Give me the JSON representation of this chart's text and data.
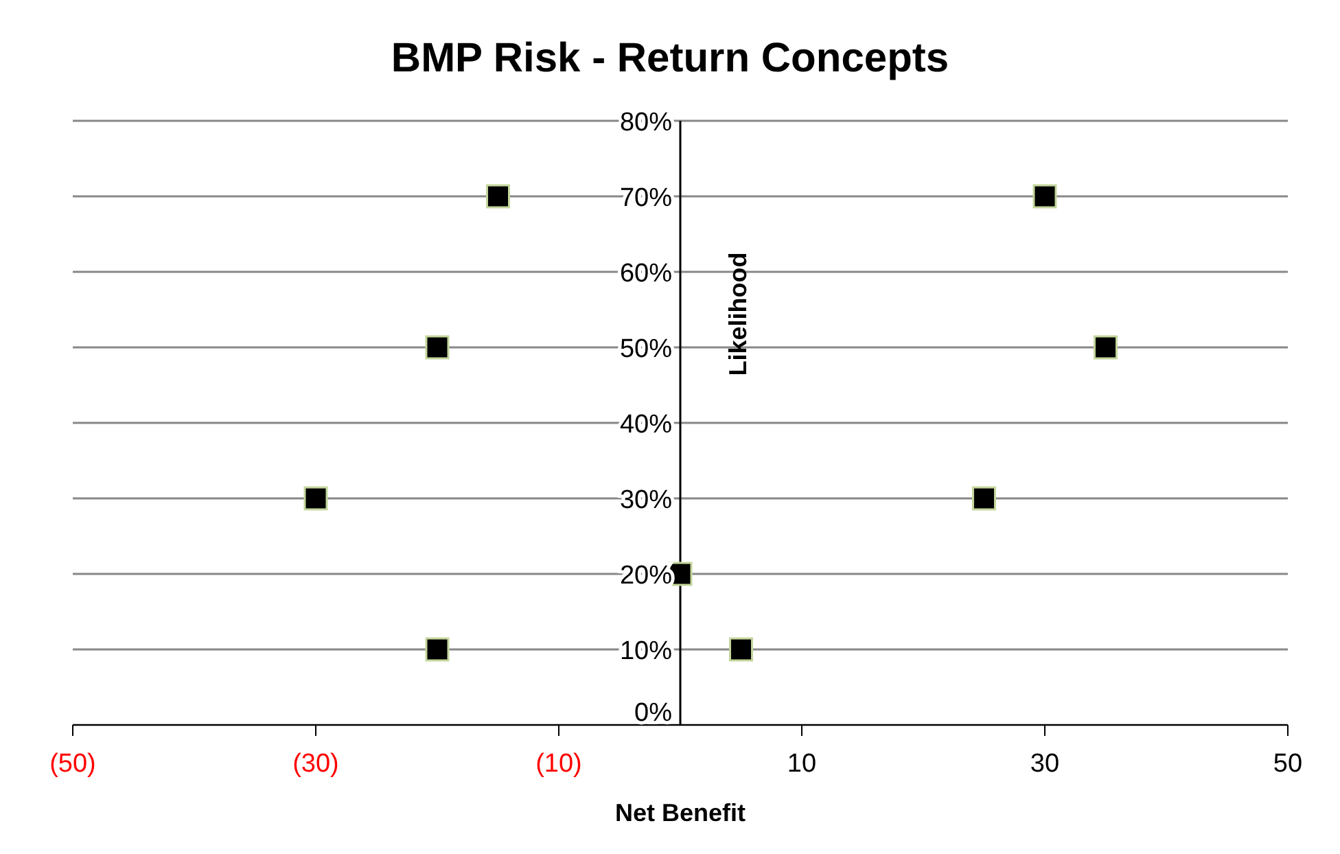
{
  "chart_data": {
    "type": "scatter",
    "title": "BMP Risk - Return Concepts",
    "xlabel": "Net Benefit",
    "ylabel": "Likelihood",
    "x": [
      -15,
      30,
      -20,
      35,
      -30,
      25,
      0,
      -20,
      5
    ],
    "series": [
      {
        "color": "#000000",
        "values": [
          70,
          70,
          50,
          50,
          30,
          30,
          20,
          10,
          10
        ]
      }
    ],
    "marker": "square",
    "grid": "y",
    "legend": false,
    "xlim": [
      -50,
      50
    ],
    "xticks": [
      {
        "value": -50,
        "label": "(50)"
      },
      {
        "value": -30,
        "label": "(30)"
      },
      {
        "value": -10,
        "label": "(10)"
      },
      10,
      30,
      50
    ],
    "ylim": [
      0,
      80
    ],
    "yticks": [
      {
        "value": 0,
        "label": "0%"
      },
      {
        "value": 10,
        "label": "10%"
      },
      {
        "value": 20,
        "label": "20%"
      },
      {
        "value": 30,
        "label": "30%"
      },
      {
        "value": 40,
        "label": "40%"
      },
      {
        "value": 50,
        "label": "50%"
      },
      {
        "value": 60,
        "label": "60%"
      },
      {
        "value": 70,
        "label": "70%"
      },
      {
        "value": 80,
        "label": "80%"
      }
    ]
  }
}
